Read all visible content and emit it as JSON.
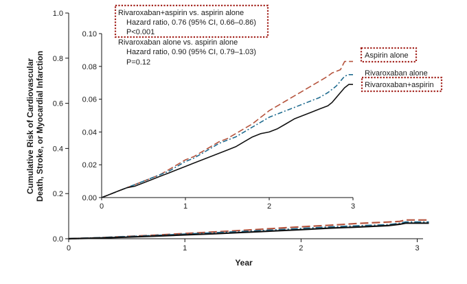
{
  "chart_data": [
    {
      "type": "line",
      "role": "main",
      "xlabel": "Year",
      "ylabel": [
        "Cumulative Risk of Cardiovascular",
        "Death, Stroke, or Myocardial Infarction"
      ],
      "xlim": [
        0,
        3.05
      ],
      "ylim": [
        0,
        1.0
      ],
      "x_ticks": [
        0,
        1,
        2,
        3
      ],
      "y_ticks": [
        0.0,
        0.2,
        0.4,
        0.6,
        0.8,
        1.0
      ],
      "x_tick_labels": [
        "0",
        "1",
        "2",
        "3"
      ],
      "y_tick_labels": [
        "0.0",
        "0.2",
        "0.4",
        "0.6",
        "0.8",
        "1.0"
      ],
      "grid": false,
      "series": [
        {
          "name": "Aspirin alone",
          "color": "#b5533c",
          "style": "long-dash",
          "points": [
            [
              0,
              0
            ],
            [
              0.25,
              0.004
            ],
            [
              0.5,
              0.01
            ],
            [
              0.75,
              0.016
            ],
            [
              1,
              0.023
            ],
            [
              1.25,
              0.03
            ],
            [
              1.5,
              0.037
            ],
            [
              1.75,
              0.045
            ],
            [
              2,
              0.053
            ],
            [
              2.25,
              0.06
            ],
            [
              2.5,
              0.068
            ],
            [
              2.75,
              0.074
            ],
            [
              2.85,
              0.077
            ],
            [
              2.9,
              0.083
            ],
            [
              3.1,
              0.083
            ]
          ]
        },
        {
          "name": "Rivaroxaban alone",
          "color": "#1f6b8f",
          "style": "dash-dot",
          "points": [
            [
              0,
              0
            ],
            [
              0.25,
              0.004
            ],
            [
              0.5,
              0.009
            ],
            [
              0.75,
              0.014
            ],
            [
              1,
              0.02
            ],
            [
              1.25,
              0.026
            ],
            [
              1.5,
              0.032
            ],
            [
              1.75,
              0.038
            ],
            [
              2,
              0.045
            ],
            [
              2.25,
              0.052
            ],
            [
              2.5,
              0.057
            ],
            [
              2.75,
              0.062
            ],
            [
              2.85,
              0.068
            ],
            [
              2.9,
              0.074
            ],
            [
              3.1,
              0.074
            ]
          ]
        },
        {
          "name": "Rivaroxaban+aspirin",
          "color": "#111111",
          "style": "solid",
          "points": [
            [
              0,
              0
            ],
            [
              0.25,
              0.003
            ],
            [
              0.5,
              0.007
            ],
            [
              0.75,
              0.012
            ],
            [
              1,
              0.017
            ],
            [
              1.25,
              0.022
            ],
            [
              1.5,
              0.028
            ],
            [
              1.75,
              0.034
            ],
            [
              2,
              0.04
            ],
            [
              2.25,
              0.047
            ],
            [
              2.5,
              0.052
            ],
            [
              2.75,
              0.058
            ],
            [
              2.85,
              0.064
            ],
            [
              2.9,
              0.069
            ],
            [
              3.1,
              0.069
            ]
          ]
        }
      ]
    },
    {
      "type": "line",
      "role": "inset",
      "xlim": [
        0,
        3.0
      ],
      "ylim": [
        0,
        0.1
      ],
      "x_ticks": [
        0,
        1,
        2,
        3
      ],
      "y_ticks": [
        0.0,
        0.02,
        0.04,
        0.06,
        0.08,
        0.1
      ],
      "x_tick_labels": [
        "0",
        "1",
        "2",
        "3"
      ],
      "y_tick_labels": [
        "0.00",
        "0.02",
        "0.04",
        "0.06",
        "0.08",
        "0.10"
      ],
      "grid": false,
      "series": [
        {
          "name": "Aspirin alone",
          "color": "#b5533c",
          "style": "long-dash",
          "points": [
            [
              0,
              0
            ],
            [
              0.1,
              0.002
            ],
            [
              0.2,
              0.004
            ],
            [
              0.3,
              0.006
            ],
            [
              0.4,
              0.008
            ],
            [
              0.5,
              0.01
            ],
            [
              0.6,
              0.012
            ],
            [
              0.7,
              0.014
            ],
            [
              0.8,
              0.017
            ],
            [
              0.9,
              0.02
            ],
            [
              1.0,
              0.023
            ],
            [
              1.1,
              0.025
            ],
            [
              1.2,
              0.028
            ],
            [
              1.3,
              0.031
            ],
            [
              1.4,
              0.034
            ],
            [
              1.5,
              0.036
            ],
            [
              1.6,
              0.039
            ],
            [
              1.7,
              0.042
            ],
            [
              1.8,
              0.045
            ],
            [
              1.9,
              0.049
            ],
            [
              2.0,
              0.053
            ],
            [
              2.1,
              0.056
            ],
            [
              2.2,
              0.059
            ],
            [
              2.3,
              0.062
            ],
            [
              2.4,
              0.065
            ],
            [
              2.5,
              0.068
            ],
            [
              2.6,
              0.071
            ],
            [
              2.7,
              0.074
            ],
            [
              2.75,
              0.076
            ],
            [
              2.8,
              0.077
            ],
            [
              2.85,
              0.078
            ],
            [
              2.9,
              0.083
            ],
            [
              3.0,
              0.083
            ]
          ]
        },
        {
          "name": "Rivaroxaban alone",
          "color": "#1f6b8f",
          "style": "dash-dot",
          "points": [
            [
              0,
              0
            ],
            [
              0.1,
              0.002
            ],
            [
              0.2,
              0.004
            ],
            [
              0.3,
              0.006
            ],
            [
              0.4,
              0.008
            ],
            [
              0.5,
              0.01
            ],
            [
              0.6,
              0.012
            ],
            [
              0.7,
              0.014
            ],
            [
              0.8,
              0.016
            ],
            [
              0.9,
              0.019
            ],
            [
              1.0,
              0.022
            ],
            [
              1.1,
              0.024
            ],
            [
              1.2,
              0.027
            ],
            [
              1.3,
              0.03
            ],
            [
              1.4,
              0.033
            ],
            [
              1.5,
              0.035
            ],
            [
              1.6,
              0.037
            ],
            [
              1.7,
              0.04
            ],
            [
              1.8,
              0.043
            ],
            [
              1.9,
              0.046
            ],
            [
              2.0,
              0.049
            ],
            [
              2.1,
              0.051
            ],
            [
              2.2,
              0.053
            ],
            [
              2.3,
              0.055
            ],
            [
              2.4,
              0.057
            ],
            [
              2.5,
              0.059
            ],
            [
              2.6,
              0.061
            ],
            [
              2.7,
              0.064
            ],
            [
              2.75,
              0.066
            ],
            [
              2.8,
              0.068
            ],
            [
              2.85,
              0.071
            ],
            [
              2.9,
              0.074
            ],
            [
              2.95,
              0.075
            ],
            [
              3.0,
              0.075
            ]
          ]
        },
        {
          "name": "Rivaroxaban+aspirin",
          "color": "#111111",
          "style": "solid",
          "points": [
            [
              0,
              0
            ],
            [
              0.1,
              0.002
            ],
            [
              0.2,
              0.004
            ],
            [
              0.3,
              0.006
            ],
            [
              0.4,
              0.007
            ],
            [
              0.5,
              0.009
            ],
            [
              0.6,
              0.011
            ],
            [
              0.7,
              0.013
            ],
            [
              0.8,
              0.015
            ],
            [
              0.9,
              0.017
            ],
            [
              1.0,
              0.019
            ],
            [
              1.1,
              0.021
            ],
            [
              1.2,
              0.023
            ],
            [
              1.3,
              0.025
            ],
            [
              1.4,
              0.027
            ],
            [
              1.5,
              0.029
            ],
            [
              1.6,
              0.031
            ],
            [
              1.7,
              0.034
            ],
            [
              1.8,
              0.037
            ],
            [
              1.9,
              0.039
            ],
            [
              2.0,
              0.04
            ],
            [
              2.1,
              0.042
            ],
            [
              2.2,
              0.045
            ],
            [
              2.3,
              0.048
            ],
            [
              2.4,
              0.05
            ],
            [
              2.5,
              0.052
            ],
            [
              2.6,
              0.054
            ],
            [
              2.7,
              0.056
            ],
            [
              2.75,
              0.058
            ],
            [
              2.8,
              0.061
            ],
            [
              2.85,
              0.064
            ],
            [
              2.9,
              0.067
            ],
            [
              2.95,
              0.069
            ],
            [
              3.0,
              0.069
            ]
          ]
        }
      ]
    }
  ],
  "annotations": {
    "comparison1": {
      "title": "Rivaroxaban+aspirin vs. aspirin alone",
      "hr": "Hazard ratio, 0.76 (95% CI, 0.66–0.86)",
      "p": "P<0.001"
    },
    "comparison2": {
      "title": "Rivaroxaban alone vs. aspirin alone",
      "hr": "Hazard ratio, 0.90 (95% CI, 0.79–1.03)",
      "p": "P=0.12"
    }
  },
  "colors": {
    "highlight_box": "#a3231d",
    "axis": "#111111"
  }
}
